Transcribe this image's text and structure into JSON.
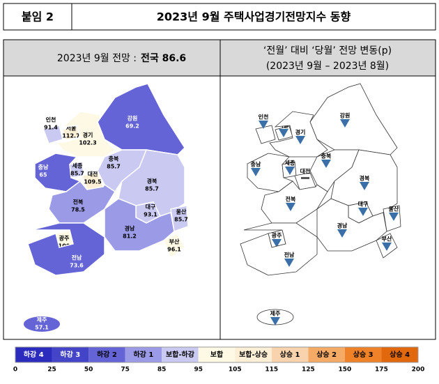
{
  "header": {
    "label": "붙임 2",
    "title": "2023년 9월 주택사업경기전망지수 동향"
  },
  "left_panel": {
    "heading": "2023년 9월 전망 :",
    "highlight": "전국 86.6"
  },
  "right_panel": {
    "heading": "‘전월’ 대비 ‘당월’ 전망 변동(p)",
    "subheading": "(2023년 9월 – 2023년 8월)"
  },
  "regions": [
    {
      "name": "강원",
      "value": 69.2
    },
    {
      "name": "인천",
      "value": 91.4
    },
    {
      "name": "서울",
      "value": 112.7
    },
    {
      "name": "경기",
      "value": 102.3
    },
    {
      "name": "충북",
      "value": 85.7
    },
    {
      "name": "충남",
      "value": 65
    },
    {
      "name": "세종",
      "value": 85.7
    },
    {
      "name": "대전",
      "value": 109.5
    },
    {
      "name": "경북",
      "value": 85.7
    },
    {
      "name": "대구",
      "value": 93.1
    },
    {
      "name": "울산",
      "value": 85.7
    },
    {
      "name": "전북",
      "value": 78.5
    },
    {
      "name": "경남",
      "value": 81.2
    },
    {
      "name": "부산",
      "value": 96.1
    },
    {
      "name": "광주",
      "value": 100
    },
    {
      "name": "전남",
      "value": 73.6
    },
    {
      "name": "제주",
      "value": 57.1
    }
  ],
  "legend": {
    "items": [
      {
        "name": "하강 4",
        "color": "#2b2bbd"
      },
      {
        "name": "하강 3",
        "color": "#4444c8"
      },
      {
        "name": "하강 2",
        "color": "#6464d6"
      },
      {
        "name": "하강 1",
        "color": "#9a9ae6"
      },
      {
        "name": "보합-하강",
        "color": "#c9c9f2"
      },
      {
        "name": "보합",
        "color": "#fdf9e4"
      },
      {
        "name": "보합-상승",
        "color": "#fcefd6"
      },
      {
        "name": "상승 1",
        "color": "#f9d3ad"
      },
      {
        "name": "상승 2",
        "color": "#f5aa66"
      },
      {
        "name": "상승 3",
        "color": "#ef8228"
      },
      {
        "name": "상승 4",
        "color": "#e2680e"
      }
    ],
    "ticks": [
      0,
      25,
      50,
      75,
      85,
      95,
      105,
      115,
      125,
      150,
      175,
      200
    ]
  }
}
